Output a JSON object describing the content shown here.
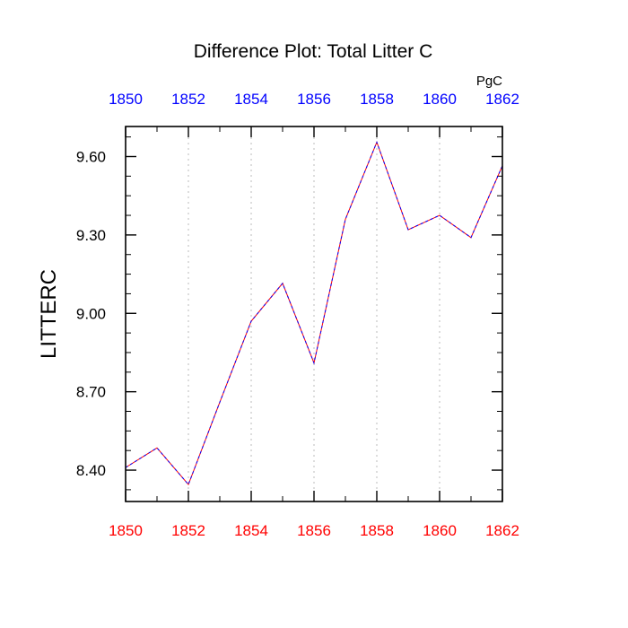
{
  "chart_data": {
    "type": "line",
    "title": "Difference Plot: Total Litter C",
    "units": "PgC",
    "ylabel": "LITTERC",
    "xlabel": "",
    "x": [
      1850,
      1851,
      1852,
      1853,
      1854,
      1855,
      1856,
      1857,
      1858,
      1859,
      1860,
      1861,
      1862
    ],
    "series": [
      {
        "values": [
          8.41,
          8.485,
          8.345,
          8.66,
          8.97,
          9.115,
          8.81,
          9.36,
          9.655,
          9.32,
          9.375,
          9.29,
          9.565
        ]
      }
    ],
    "xlim": [
      1850,
      1862
    ],
    "ylim": [
      8.28,
      9.715
    ],
    "x_ticks": [
      "1850",
      "1852",
      "1854",
      "1856",
      "1858",
      "1860",
      "1862"
    ],
    "y_ticks": [
      "8.40",
      "8.70",
      "9.00",
      "9.30",
      "9.60"
    ],
    "grid": "vertical dotted",
    "line_style": "dashed",
    "colors": {
      "line_primary": "#ff0000",
      "line_secondary": "#0000ff",
      "bottom_ticks": "#ff0000",
      "top_ticks": "#0000ff",
      "grid": "#bbbbbb",
      "axis": "#000000"
    }
  }
}
